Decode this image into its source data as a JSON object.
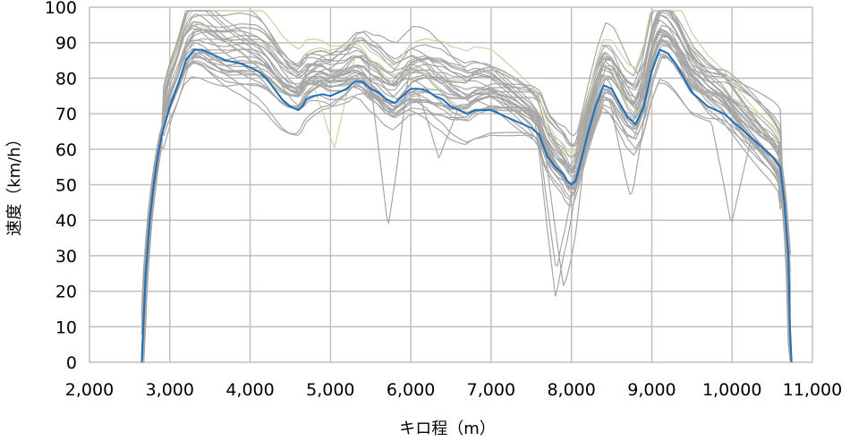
{
  "chart_data": {
    "type": "line",
    "title": "",
    "xlabel": "キロ程（m）",
    "ylabel": "速度（km/h）",
    "xlim": [
      2000,
      11000
    ],
    "ylim": [
      0,
      100
    ],
    "grid": true,
    "legend": "none",
    "x_ticks": [
      2000,
      3000,
      4000,
      5000,
      6000,
      7000,
      8000,
      9000,
      10000,
      11000
    ],
    "x_tick_labels": [
      "2,000",
      "3,000",
      "4,000",
      "5,000",
      "6,000",
      "7,000",
      "8,000",
      "9,000",
      "1,0000",
      "11,000"
    ],
    "y_ticks": [
      0,
      10,
      20,
      30,
      40,
      50,
      60,
      70,
      80,
      90,
      100
    ],
    "y_tick_labels": [
      "0",
      "10",
      "20",
      "30",
      "40",
      "50",
      "60",
      "70",
      "80",
      "90",
      "100"
    ],
    "colors": {
      "highlight": "#1f6fb8",
      "background_runs": "#a6a6a6",
      "alt_run": "#c8d4a3"
    },
    "series": [
      {
        "role": "highlight",
        "color": "#1f6fb8",
        "x": [
          2650,
          2700,
          2750,
          2800,
          2850,
          2900,
          2950,
          3000,
          3100,
          3200,
          3300,
          3400,
          3500,
          3600,
          3700,
          3800,
          3900,
          4000,
          4100,
          4200,
          4300,
          4400,
          4500,
          4600,
          4650,
          4700,
          4800,
          4900,
          5000,
          5100,
          5200,
          5300,
          5400,
          5500,
          5600,
          5700,
          5800,
          5900,
          6000,
          6100,
          6200,
          6300,
          6400,
          6500,
          6600,
          6700,
          6800,
          6900,
          7000,
          7100,
          7200,
          7300,
          7400,
          7500,
          7600,
          7700,
          7800,
          7900,
          7950,
          8000,
          8050,
          8100,
          8200,
          8300,
          8400,
          8500,
          8600,
          8700,
          8800,
          8900,
          9000,
          9100,
          9200,
          9300,
          9400,
          9500,
          9600,
          9700,
          9800,
          9900,
          10000,
          10100,
          10200,
          10300,
          10400,
          10500,
          10600,
          10650,
          10700,
          10720,
          10740
        ],
        "y": [
          0,
          25,
          40,
          50,
          58,
          64,
          68,
          72,
          78,
          85,
          88,
          88,
          87,
          86,
          85,
          84.5,
          84,
          83,
          82,
          80,
          77,
          74,
          72,
          71,
          72,
          74,
          75,
          75.5,
          75,
          76,
          77,
          79,
          79,
          77,
          76,
          74,
          73,
          75,
          77,
          77,
          76.5,
          75,
          74,
          72,
          71,
          70,
          71,
          71,
          71,
          70,
          69,
          68,
          67,
          66,
          64,
          58,
          55,
          53,
          51,
          50,
          51,
          55,
          64,
          72,
          78,
          77,
          73,
          69,
          67,
          72,
          82,
          88,
          87,
          84,
          80,
          76,
          74,
          72,
          71,
          70,
          68,
          66,
          64,
          62,
          60,
          58,
          55,
          45,
          30,
          10,
          0
        ]
      }
    ]
  }
}
